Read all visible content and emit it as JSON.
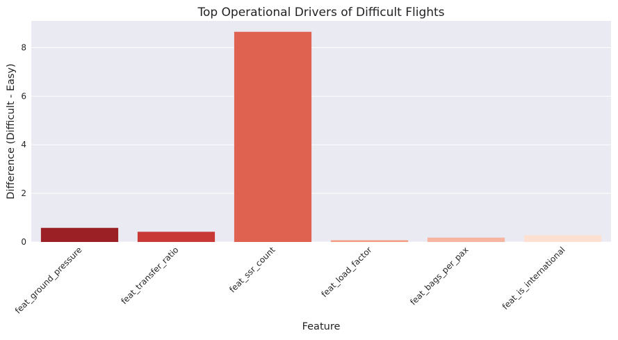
{
  "chart_data": {
    "type": "bar",
    "title": "Top Operational Drivers of Difficult Flights",
    "xlabel": "Feature",
    "ylabel": "Difference (Difficult - Easy)",
    "categories": [
      "feat_ground_pressure",
      "feat_transfer_ratio",
      "feat_ssr_count",
      "feat_load_factor",
      "feat_bags_per_pax",
      "feat_is_international"
    ],
    "values": [
      0.58,
      0.42,
      8.65,
      0.07,
      0.18,
      0.28
    ],
    "colors": [
      "#9b2026",
      "#c83936",
      "#df6150",
      "#f59d83",
      "#f6b5a0",
      "#fde0d1"
    ],
    "ylim": [
      0,
      9.1
    ],
    "yticks": [
      0,
      2,
      4,
      6,
      8
    ],
    "grid": true,
    "background": "#eaeaf2"
  }
}
